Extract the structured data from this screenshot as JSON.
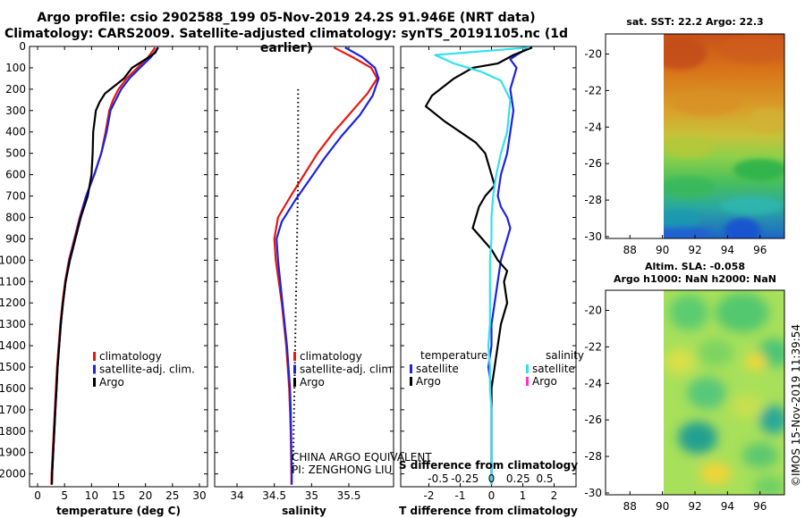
{
  "title_line1": "Argo profile: csio 2902588_199 05-Nov-2019 24.2S 91.946E (NRT data)",
  "title_line2": "Climatology: CARS2009. Satellite-adjusted climatology: synTS_20191105.nc (1d earlier)",
  "colors": {
    "climatology": "#e8170f",
    "satellite": "#1a23e0",
    "argo": "#000000",
    "argo_salinity": "#ff33cc",
    "satellite_salinity": "#33e0ee"
  },
  "chart_data": [
    {
      "type": "line",
      "name": "temperature",
      "xlabel": "temperature (deg C)",
      "ylabel": "depth",
      "xlim": [
        -1.5,
        31.5
      ],
      "ylim": [
        2060,
        0
      ],
      "xticks": [
        0,
        5,
        10,
        15,
        20,
        25,
        30
      ],
      "yticks": [
        0,
        100,
        200,
        300,
        400,
        500,
        600,
        700,
        800,
        900,
        1000,
        1100,
        1200,
        1300,
        1400,
        1500,
        1600,
        1700,
        1800,
        1900,
        2000
      ],
      "legend": [
        "climatology",
        "satellite-adj. clim.",
        "Argo"
      ],
      "series": [
        {
          "name": "climatology",
          "color": "red",
          "points": [
            [
              21.8,
              5
            ],
            [
              20.5,
              50
            ],
            [
              18.5,
              100
            ],
            [
              16.5,
              150
            ],
            [
              15,
              200
            ],
            [
              14,
              250
            ],
            [
              13.3,
              300
            ],
            [
              12.6,
              400
            ],
            [
              11.8,
              500
            ],
            [
              10.5,
              600
            ],
            [
              9,
              700
            ],
            [
              7.8,
              800
            ],
            [
              6.8,
              900
            ],
            [
              5.8,
              1000
            ],
            [
              5.1,
              1100
            ],
            [
              4.6,
              1200
            ],
            [
              4.2,
              1300
            ],
            [
              3.9,
              1400
            ],
            [
              3.6,
              1500
            ],
            [
              3.4,
              1600
            ],
            [
              3.2,
              1700
            ],
            [
              3.0,
              1800
            ],
            [
              2.8,
              1900
            ],
            [
              2.6,
              2000
            ],
            [
              2.55,
              2050
            ]
          ]
        },
        {
          "name": "satellite-adj. clim.",
          "color": "blue",
          "points": [
            [
              22.4,
              5
            ],
            [
              21,
              50
            ],
            [
              19,
              100
            ],
            [
              17,
              150
            ],
            [
              15.5,
              200
            ],
            [
              14.5,
              250
            ],
            [
              13.5,
              300
            ],
            [
              12.8,
              400
            ],
            [
              11.8,
              500
            ],
            [
              10.5,
              600
            ],
            [
              9,
              700
            ],
            [
              7.9,
              800
            ],
            [
              6.9,
              900
            ],
            [
              5.9,
              1000
            ],
            [
              5.2,
              1100
            ],
            [
              4.7,
              1200
            ],
            [
              4.3,
              1300
            ],
            [
              4.0,
              1400
            ],
            [
              3.7,
              1500
            ],
            [
              3.5,
              1600
            ],
            [
              3.3,
              1700
            ],
            [
              3.1,
              1800
            ],
            [
              2.9,
              1900
            ],
            [
              2.7,
              2000
            ],
            [
              2.65,
              2050
            ]
          ]
        },
        {
          "name": "Argo",
          "color": "black",
          "points": [
            [
              22.3,
              5
            ],
            [
              21.8,
              30
            ],
            [
              20,
              60
            ],
            [
              17.5,
              100
            ],
            [
              16,
              150
            ],
            [
              14.5,
              180
            ],
            [
              12.5,
              220
            ],
            [
              11.5,
              260
            ],
            [
              10.8,
              300
            ],
            [
              10.3,
              400
            ],
            [
              10.2,
              500
            ],
            [
              10,
              600
            ],
            [
              9.3,
              700
            ],
            [
              8,
              800
            ],
            [
              7,
              900
            ],
            [
              6,
              1000
            ],
            [
              5.2,
              1100
            ],
            [
              4.7,
              1200
            ],
            [
              4.3,
              1300
            ],
            [
              4.0,
              1400
            ],
            [
              3.7,
              1500
            ],
            [
              3.5,
              1600
            ],
            [
              3.3,
              1700
            ],
            [
              3.1,
              1800
            ],
            [
              2.9,
              1900
            ],
            [
              2.7,
              2000
            ],
            [
              2.65,
              2050
            ]
          ]
        }
      ]
    },
    {
      "type": "line",
      "name": "salinity",
      "xlabel": "salinity",
      "ylabel": "depth",
      "xlim": [
        33.7,
        36.1
      ],
      "ylim": [
        2060,
        0
      ],
      "xticks": [
        34,
        34.5,
        35,
        35.5
      ],
      "xtick_labels": [
        "34",
        "34.5",
        "35",
        "35.5"
      ],
      "legend": [
        "climatology",
        "satellite-adj. clim.",
        "Argo"
      ],
      "pi_text": [
        "CHINA ARGO EQUIVALENT",
        "PI: ZENGHONG LIU"
      ],
      "series": [
        {
          "name": "climatology",
          "color": "red",
          "points": [
            [
              35.3,
              5
            ],
            [
              35.55,
              50
            ],
            [
              35.8,
              100
            ],
            [
              35.88,
              150
            ],
            [
              35.75,
              220
            ],
            [
              35.55,
              300
            ],
            [
              35.3,
              400
            ],
            [
              35.08,
              500
            ],
            [
              34.9,
              600
            ],
            [
              34.72,
              700
            ],
            [
              34.55,
              800
            ],
            [
              34.5,
              900
            ],
            [
              34.52,
              1000
            ],
            [
              34.56,
              1100
            ],
            [
              34.6,
              1200
            ],
            [
              34.63,
              1300
            ],
            [
              34.66,
              1400
            ],
            [
              34.68,
              1500
            ],
            [
              34.7,
              1600
            ],
            [
              34.71,
              1700
            ],
            [
              34.72,
              1800
            ],
            [
              34.725,
              1900
            ],
            [
              34.73,
              2000
            ],
            [
              34.73,
              2050
            ]
          ]
        },
        {
          "name": "satellite-adj. clim.",
          "color": "blue",
          "points": [
            [
              35.45,
              5
            ],
            [
              35.68,
              50
            ],
            [
              35.85,
              100
            ],
            [
              35.9,
              150
            ],
            [
              35.82,
              230
            ],
            [
              35.65,
              320
            ],
            [
              35.4,
              420
            ],
            [
              35.18,
              520
            ],
            [
              34.98,
              620
            ],
            [
              34.78,
              720
            ],
            [
              34.6,
              820
            ],
            [
              34.53,
              900
            ],
            [
              34.55,
              1000
            ],
            [
              34.58,
              1100
            ],
            [
              34.61,
              1200
            ],
            [
              34.64,
              1300
            ],
            [
              34.67,
              1400
            ],
            [
              34.69,
              1500
            ],
            [
              34.71,
              1600
            ],
            [
              34.72,
              1700
            ],
            [
              34.725,
              1800
            ],
            [
              34.73,
              1900
            ],
            [
              34.735,
              2000
            ],
            [
              34.735,
              2050
            ]
          ]
        },
        {
          "name": "Argo",
          "color": "black",
          "style": "dotted",
          "points": [
            [
              34.82,
              200
            ],
            [
              34.82,
              400
            ],
            [
              34.82,
              600
            ],
            [
              34.81,
              800
            ],
            [
              34.8,
              1000
            ],
            [
              34.79,
              1200
            ],
            [
              34.78,
              1400
            ],
            [
              34.77,
              1600
            ],
            [
              34.76,
              1800
            ],
            [
              34.75,
              2000
            ]
          ]
        }
      ]
    },
    {
      "type": "line",
      "name": "difference from climatology",
      "xlabel": "T difference from climatology",
      "xlabel_top": "S difference from climatology",
      "xlim": [
        -2.9,
        2.7
      ],
      "ylim": [
        2060,
        0
      ],
      "xticks": [
        -2,
        -1,
        0,
        1,
        2
      ],
      "top_ticks": [
        -0.5,
        -0.25,
        0,
        0.25,
        0.5
      ],
      "top_tick_labels": [
        "-0.5",
        "-0.25",
        "0",
        "0.25",
        "0.5"
      ],
      "legend_temperature": {
        "title": "temperature",
        "items": [
          "satellite",
          "Argo"
        ]
      },
      "legend_salinity": {
        "title": "salinity",
        "items": [
          "satellite",
          "Argo"
        ]
      },
      "series": [
        {
          "name": "T satellite",
          "color": "blue",
          "points": [
            [
              1.2,
              5
            ],
            [
              0.8,
              40
            ],
            [
              0.6,
              60
            ],
            [
              0.8,
              100
            ],
            [
              0.7,
              150
            ],
            [
              0.6,
              200
            ],
            [
              0.7,
              300
            ],
            [
              0.6,
              400
            ],
            [
              0.5,
              500
            ],
            [
              0.3,
              600
            ],
            [
              0.2,
              700
            ],
            [
              0.3,
              750
            ],
            [
              0.5,
              800
            ],
            [
              0.6,
              850
            ],
            [
              0.5,
              900
            ],
            [
              0.3,
              1000
            ],
            [
              0.2,
              1100
            ],
            [
              0.1,
              1200
            ],
            [
              0,
              1300
            ],
            [
              0,
              1400
            ],
            [
              -0.1,
              1500
            ],
            [
              0,
              1600
            ],
            [
              0,
              1700
            ],
            [
              0,
              1800
            ],
            [
              0,
              1900
            ],
            [
              0,
              2000
            ],
            [
              0,
              2050
            ]
          ]
        },
        {
          "name": "T Argo",
          "color": "black",
          "points": [
            [
              1.3,
              5
            ],
            [
              0.7,
              40
            ],
            [
              0.2,
              80
            ],
            [
              -0.6,
              100
            ],
            [
              -1.2,
              150
            ],
            [
              -1.9,
              230
            ],
            [
              -2.1,
              280
            ],
            [
              -1.5,
              350
            ],
            [
              -1,
              400
            ],
            [
              -0.5,
              450
            ],
            [
              -0.2,
              500
            ],
            [
              0,
              600
            ],
            [
              0.1,
              650
            ],
            [
              -0.2,
              700
            ],
            [
              -0.4,
              750
            ],
            [
              -0.6,
              850
            ],
            [
              -0.3,
              900
            ],
            [
              0,
              950
            ],
            [
              0.2,
              1000
            ],
            [
              0.5,
              1050
            ],
            [
              0.4,
              1100
            ],
            [
              0.5,
              1200
            ],
            [
              0.3,
              1300
            ],
            [
              0.2,
              1400
            ],
            [
              0.1,
              1500
            ],
            [
              0,
              1600
            ],
            [
              0,
              1700
            ],
            [
              0,
              1800
            ],
            [
              0,
              1900
            ],
            [
              0,
              2000
            ],
            [
              0,
              2050
            ]
          ]
        },
        {
          "name": "S satellite",
          "color": "cyan",
          "points": [
            [
              1.2,
              5
            ],
            [
              -1.8,
              40
            ],
            [
              -1.2,
              80
            ],
            [
              -0.3,
              120
            ],
            [
              0.3,
              160
            ],
            [
              0.6,
              250
            ],
            [
              0.5,
              400
            ],
            [
              0.3,
              500
            ],
            [
              0.15,
              600
            ],
            [
              0.05,
              700
            ],
            [
              0,
              800
            ],
            [
              0,
              900
            ],
            [
              -0.05,
              1000
            ],
            [
              -0.05,
              1100
            ],
            [
              -0.05,
              1200
            ],
            [
              -0.05,
              1300
            ],
            [
              -0.1,
              1400
            ],
            [
              -0.05,
              1500
            ],
            [
              -0.05,
              1600
            ],
            [
              0,
              1700
            ],
            [
              0,
              1800
            ],
            [
              0,
              1900
            ],
            [
              0,
              2000
            ],
            [
              0,
              2050
            ]
          ]
        }
      ]
    },
    {
      "type": "heatmap",
      "name": "sat. SST map",
      "title": "sat. SST: 22.2 Argo: 22.3",
      "xticks": [
        88,
        90,
        92,
        94,
        96
      ],
      "yticks": [
        -20,
        -22,
        -24,
        -26,
        -28,
        -30
      ],
      "xlim": [
        86.5,
        97.5
      ],
      "ylim": [
        -30.1,
        -18.9
      ],
      "data_xlim": [
        90,
        97.5
      ]
    },
    {
      "type": "heatmap",
      "name": "Altim. SLA map",
      "title_line1": "Altim. SLA: -0.058",
      "title_line2": "Argo h1000: NaN h2000: NaN",
      "xticks": [
        88,
        90,
        92,
        94,
        96
      ],
      "yticks": [
        -20,
        -22,
        -24,
        -26,
        -28,
        -30
      ],
      "xlim": [
        86.5,
        97.5
      ],
      "ylim": [
        -30.1,
        -18.9
      ],
      "data_xlim": [
        90,
        97.5
      ]
    }
  ],
  "footer": "©IMOS 15-Nov-2019 11:39:54"
}
